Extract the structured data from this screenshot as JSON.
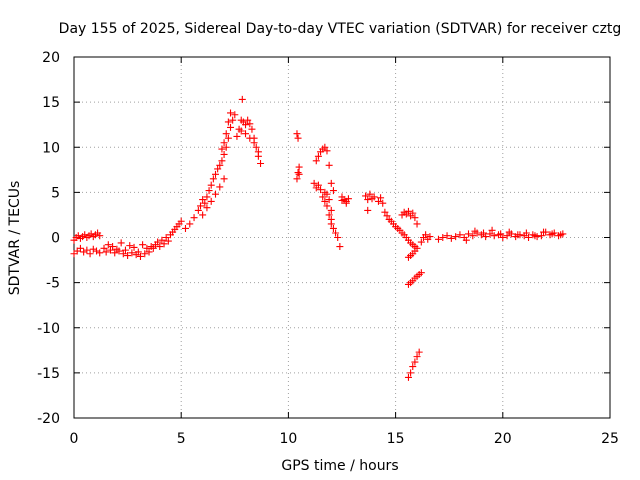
{
  "chart_data": {
    "type": "scatter",
    "title": "Day 155 of 2025, Sidereal Day-to-day VTEC variation (SDTVAR) for receiver cztg",
    "xlabel": "GPS time / hours",
    "ylabel": "SDTVAR / TECUs",
    "xlim": [
      0,
      25
    ],
    "ylim": [
      -20,
      20
    ],
    "xticks": [
      "0",
      "5",
      "10",
      "15",
      "20",
      "25"
    ],
    "yticks": [
      "-20",
      "-15",
      "-10",
      "-5",
      "0",
      "5",
      "10",
      "15",
      "20"
    ],
    "grid": true,
    "marker": "+",
    "color": "#ff0000",
    "series": [
      {
        "name": "SDTVAR",
        "x": [
          0.0,
          0.1,
          0.2,
          0.3,
          0.4,
          0.5,
          0.6,
          0.7,
          0.8,
          0.9,
          1.0,
          1.1,
          1.2,
          0.0,
          0.15,
          0.3,
          0.45,
          0.6,
          0.75,
          0.9,
          1.05,
          1.2,
          1.4,
          1.6,
          1.8,
          2.0,
          2.2,
          2.4,
          2.6,
          2.8,
          3.0,
          3.2,
          3.4,
          3.6,
          1.5,
          1.7,
          1.9,
          2.1,
          2.3,
          2.5,
          2.7,
          2.9,
          3.1,
          3.3,
          3.5,
          3.7,
          3.8,
          3.9,
          4.0,
          4.1,
          4.2,
          4.3,
          4.4,
          4.5,
          4.6,
          4.7,
          4.8,
          4.9,
          5.0,
          5.2,
          5.4,
          5.6,
          5.8,
          5.9,
          6.0,
          6.1,
          6.2,
          6.3,
          6.4,
          6.5,
          6.6,
          6.7,
          6.8,
          6.9,
          7.0,
          6.0,
          6.2,
          6.4,
          6.6,
          6.8,
          7.0,
          7.1,
          7.2,
          7.3,
          7.4,
          7.5,
          7.3,
          7.2,
          7.1,
          7.0,
          6.9,
          7.6,
          7.7,
          7.8,
          7.9,
          8.0,
          8.1,
          8.2,
          8.3,
          8.4,
          8.5,
          8.6,
          8.7,
          7.8,
          8.0,
          8.2,
          8.4,
          8.6,
          7.85,
          10.4,
          10.45,
          10.5,
          10.5,
          10.4,
          10.45,
          11.2,
          11.3,
          11.4,
          11.5,
          11.6,
          11.7,
          11.8,
          11.9,
          12.0,
          12.1,
          11.3,
          11.4,
          11.5,
          11.6,
          11.7,
          11.8,
          11.9,
          12.0,
          11.7,
          11.8,
          11.9,
          12.0,
          12.0,
          12.1,
          12.2,
          12.3,
          12.4,
          12.5,
          12.6,
          12.7,
          12.8,
          12.7,
          12.5,
          13.6,
          13.7,
          13.8,
          13.9,
          14.0,
          14.2,
          14.3,
          14.4,
          13.7,
          14.5,
          14.6,
          14.7,
          14.8,
          14.9,
          15.0,
          15.1,
          15.2,
          15.3,
          15.4,
          15.5,
          15.6,
          15.7,
          15.8,
          15.9,
          15.3,
          15.4,
          15.5,
          15.6,
          15.7,
          15.8,
          15.9,
          16.0,
          15.6,
          15.7,
          15.8,
          15.9,
          16.0,
          15.6,
          15.7,
          15.8,
          15.9,
          16.0,
          16.1,
          16.2,
          15.6,
          15.7,
          15.8,
          15.9,
          16.0,
          16.1,
          16.2,
          16.3,
          16.4,
          16.5,
          16.6,
          17.0,
          17.2,
          17.4,
          17.6,
          17.8,
          18.0,
          18.2,
          18.4,
          18.6,
          18.8,
          19.0,
          19.2,
          19.4,
          19.6,
          19.8,
          20.0,
          20.2,
          20.4,
          20.6,
          20.8,
          21.0,
          21.2,
          21.4,
          21.6,
          21.8,
          22.0,
          22.2,
          22.4,
          22.6,
          22.8,
          18.3,
          18.7,
          19.1,
          19.5,
          19.9,
          20.3,
          20.7,
          21.1,
          21.5,
          21.9,
          22.3,
          22.7
        ],
        "y": [
          -0.3,
          0.0,
          0.2,
          -0.1,
          0.1,
          0.3,
          0.0,
          0.2,
          0.4,
          0.1,
          0.3,
          0.5,
          0.2,
          -1.8,
          -1.5,
          -1.2,
          -1.6,
          -1.4,
          -1.8,
          -1.3,
          -1.5,
          -1.7,
          -1.2,
          -0.8,
          -1.0,
          -1.3,
          -0.6,
          -1.4,
          -0.9,
          -1.1,
          -1.6,
          -0.8,
          -1.2,
          -1.0,
          -1.6,
          -1.4,
          -1.7,
          -1.5,
          -1.8,
          -2.0,
          -1.7,
          -1.9,
          -2.1,
          -1.8,
          -1.6,
          -1.2,
          -0.8,
          -0.5,
          -1.0,
          -0.3,
          -0.7,
          0.0,
          -0.4,
          0.3,
          0.6,
          0.9,
          1.2,
          1.5,
          1.8,
          1.0,
          1.5,
          2.2,
          3.0,
          3.5,
          4.2,
          3.8,
          4.5,
          5.2,
          5.8,
          6.5,
          7.0,
          7.6,
          8.0,
          8.5,
          9.2,
          2.5,
          3.3,
          4.0,
          4.8,
          5.6,
          6.5,
          10.0,
          11.0,
          12.2,
          13.0,
          13.6,
          13.8,
          12.8,
          11.5,
          10.5,
          9.8,
          11.2,
          12.0,
          13.0,
          12.8,
          12.5,
          13.0,
          12.6,
          12.0,
          11.0,
          10.0,
          9.5,
          8.2,
          11.8,
          11.5,
          11.0,
          10.5,
          9.0,
          15.3,
          11.5,
          11.0,
          7.8,
          7.0,
          6.5,
          7.2,
          6.0,
          8.5,
          9.0,
          9.5,
          9.8,
          10.0,
          9.6,
          8.0,
          6.0,
          5.2,
          5.5,
          5.8,
          5.3,
          4.5,
          5.0,
          4.8,
          4.2,
          3.0,
          4.0,
          3.5,
          2.5,
          2.0,
          1.5,
          1.0,
          0.5,
          0.0,
          -1.0,
          4.5,
          4.2,
          4.0,
          4.3,
          3.8,
          4.1,
          4.6,
          4.2,
          4.8,
          4.3,
          4.5,
          4.0,
          4.4,
          3.8,
          3.0,
          2.8,
          2.4,
          2.0,
          1.8,
          1.5,
          1.2,
          1.0,
          0.8,
          0.5,
          0.3,
          0.0,
          -0.3,
          -0.6,
          -0.8,
          -1.0,
          2.5,
          2.8,
          2.6,
          2.9,
          2.4,
          2.7,
          2.2,
          1.5,
          -2.2,
          -2.0,
          -1.8,
          -1.5,
          -1.2,
          -5.2,
          -5.0,
          -4.8,
          -4.5,
          -4.3,
          -4.1,
          -3.9,
          -15.5,
          -15.0,
          -14.3,
          -13.8,
          -13.2,
          -12.7,
          -0.5,
          0.0,
          0.3,
          -0.2,
          0.1,
          -0.2,
          0.0,
          0.2,
          -0.1,
          0.1,
          0.3,
          0.0,
          0.4,
          0.2,
          0.5,
          0.3,
          0.1,
          0.4,
          0.2,
          0.3,
          0.0,
          0.2,
          0.4,
          0.1,
          0.3,
          0.2,
          0.0,
          0.3,
          0.1,
          0.2,
          0.6,
          0.3,
          0.5,
          0.2,
          0.4,
          -0.3,
          0.7,
          0.5,
          0.8,
          0.4,
          0.6,
          0.3,
          0.5,
          0.2,
          0.6,
          0.4,
          0.3
        ]
      }
    ]
  }
}
